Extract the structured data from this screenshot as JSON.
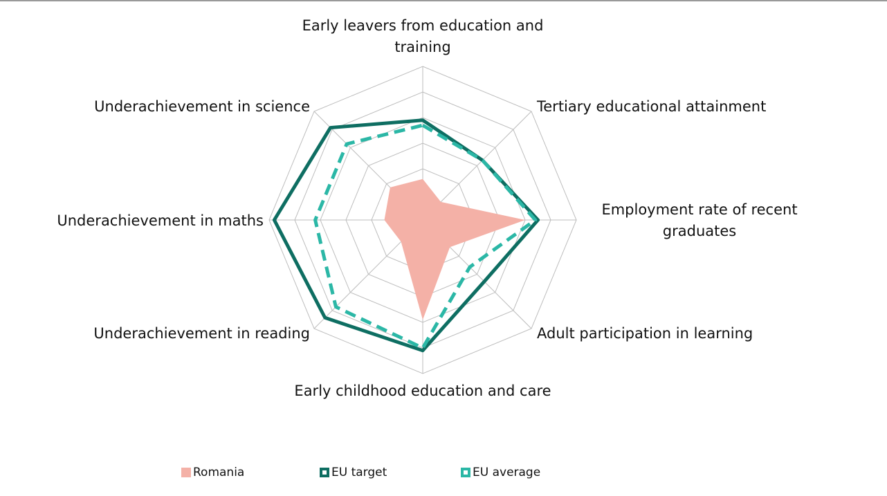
{
  "chart_data": {
    "type": "radar",
    "categories": [
      "Early leavers from education and training",
      "Tertiary educational attainment",
      "Employment rate of recent graduates",
      "Adult participation in learning",
      "Early childhood education and care",
      "Underachievement in reading",
      "Underachievement in maths",
      "Underachievement in science"
    ],
    "series": [
      {
        "name": "Romania",
        "color": "#f4b1a7",
        "style": "area",
        "values": [
          1.6,
          1.0,
          4.0,
          1.5,
          3.9,
          1.2,
          1.5,
          1.8
        ]
      },
      {
        "name": "EU target",
        "color": "#0e6e62",
        "style": "solid",
        "values": [
          3.9,
          3.3,
          4.5,
          3.4,
          5.1,
          5.4,
          5.8,
          5.1
        ]
      },
      {
        "name": "EU average",
        "color": "#2bb7a6",
        "style": "dashed",
        "values": [
          3.7,
          3.3,
          4.4,
          2.6,
          5.0,
          4.8,
          4.2,
          4.2
        ]
      }
    ],
    "rlim": [
      0,
      6
    ],
    "rticks": [
      1,
      2,
      3,
      4,
      5,
      6
    ],
    "grid": true
  }
}
